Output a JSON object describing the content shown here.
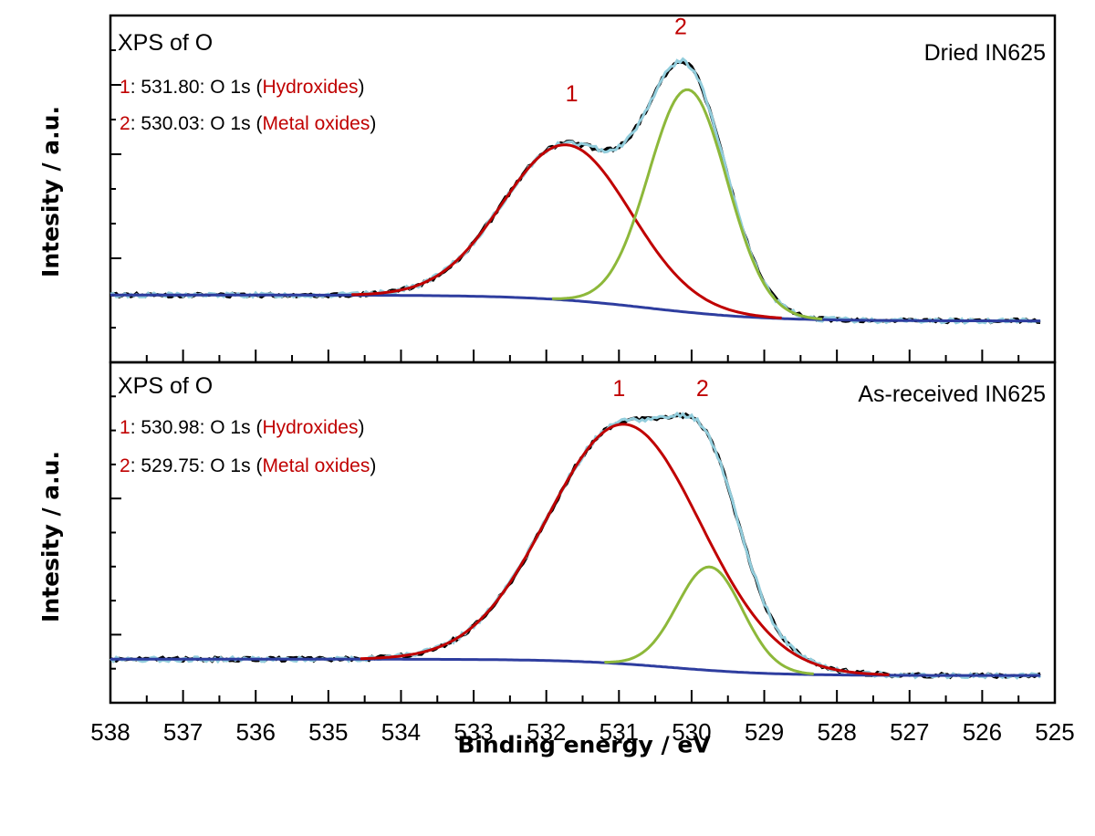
{
  "chart_data": {
    "type": "line",
    "xlabel": "Binding energy / eV",
    "xlim": [
      538,
      525
    ],
    "xticks": [
      "538",
      "537",
      "536",
      "535",
      "534",
      "533",
      "532",
      "531",
      "530",
      "529",
      "528",
      "527",
      "526",
      "525"
    ],
    "colors": {
      "raw": "#000000",
      "envelope": "#92cddc",
      "peak1": "#c00000",
      "peak2": "#8db83a",
      "background": "#2e3d9f",
      "label_red": "#c00000"
    },
    "panels": [
      {
        "ylabel": "Intesity / a.u.",
        "title": "XPS of O",
        "sample_label": "Dried IN625",
        "legend": [
          {
            "num": "1",
            "sep": ": ",
            "text": "531.80: O 1s (",
            "species": "Hydroxides",
            "close": ")"
          },
          {
            "num": "2",
            "sep": ": ",
            "text": "530.03: O 1s (",
            "species": "Metal oxides",
            "close": ")"
          }
        ],
        "peak_marks": [
          {
            "label": "1",
            "x": 531.65,
            "y": 0.84
          },
          {
            "label": "2",
            "x": 530.15,
            "y": 1.1
          }
        ],
        "baseline": {
          "left": 0.12,
          "right": 0.02,
          "center": 530.6,
          "width": 0.8
        },
        "series": [
          {
            "name": "1",
            "type": "gaussian",
            "center": 531.72,
            "amplitude": 0.6,
            "sigma": 0.88
          },
          {
            "name": "2",
            "type": "gaussian",
            "center": 530.05,
            "amplitude": 0.86,
            "sigma": 0.54
          }
        ],
        "ylim": [
          -0.14,
          1.2
        ]
      },
      {
        "ylabel": "Intesity / a.u.",
        "title": "XPS of O",
        "sample_label": "As-received IN625",
        "legend": [
          {
            "num": "1",
            "sep": ": ",
            "text": "530.98: O 1s (",
            "species": "Hydroxides",
            "close": ")"
          },
          {
            "num": "2",
            "sep": ": ",
            "text": "529.75: O 1s (",
            "species": "Metal oxides",
            "close": ")"
          }
        ],
        "peak_marks": [
          {
            "label": "1",
            "x": 531.0,
            "y": 1.0
          },
          {
            "label": "2",
            "x": 529.85,
            "y": 1.0
          }
        ],
        "baseline": {
          "left": 0.06,
          "right": 0.0,
          "center": 530.3,
          "width": 0.7
        },
        "series": [
          {
            "name": "1",
            "type": "gaussian",
            "center": 530.92,
            "amplitude": 0.88,
            "sigma": 1.05
          },
          {
            "name": "2",
            "type": "gaussian",
            "center": 529.75,
            "amplitude": 0.38,
            "sigma": 0.45
          }
        ],
        "ylim": [
          -0.1,
          1.15
        ]
      }
    ]
  }
}
